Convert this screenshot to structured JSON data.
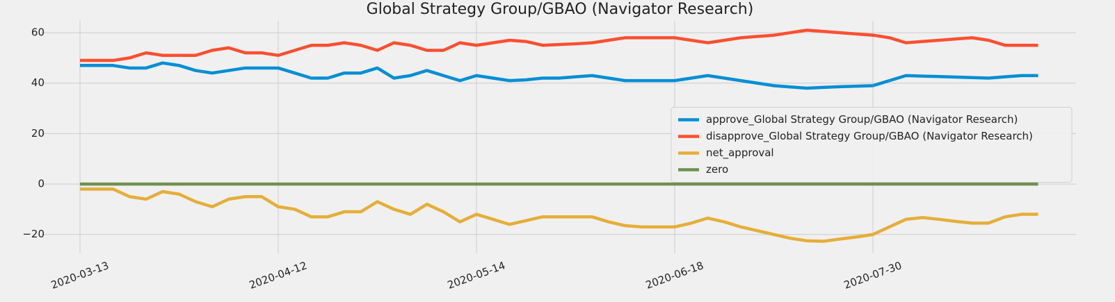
{
  "chart_data": {
    "type": "line",
    "title": "Global Strategy Group/GBAO (Navigator Research)",
    "categories": [
      "2020-03-13",
      null,
      null,
      null,
      null,
      null,
      null,
      null,
      null,
      null,
      null,
      null,
      "2020-04-12",
      null,
      null,
      null,
      null,
      null,
      null,
      null,
      null,
      null,
      null,
      null,
      "2020-05-14",
      null,
      null,
      null,
      null,
      null,
      null,
      null,
      null,
      null,
      null,
      null,
      "2020-06-18",
      null,
      null,
      null,
      null,
      null,
      null,
      null,
      null,
      null,
      null,
      null,
      "2020-07-30",
      null,
      null,
      null,
      null,
      null,
      null,
      null,
      null,
      null,
      null
    ],
    "series": [
      {
        "name": "approve_Global Strategy Group/GBAO (Navigator Research)",
        "color": "#008fd5",
        "values": [
          47,
          47,
          47,
          46,
          46,
          48,
          47,
          45,
          44,
          45,
          46,
          46,
          46,
          44,
          42,
          42,
          44,
          44,
          46,
          42,
          43,
          45,
          43,
          41,
          43,
          42,
          41,
          41.3,
          42,
          42,
          42.5,
          43,
          42,
          41,
          41,
          41,
          41,
          42,
          43,
          42,
          41,
          40,
          39,
          38.5,
          38,
          38.3,
          38.6,
          38.8,
          39,
          41,
          43,
          42.8,
          42.6,
          42.4,
          42.2,
          42,
          42.5,
          43,
          43
        ]
      },
      {
        "name": "disapprove_Global Strategy Group/GBAO (Navigator Research)",
        "color": "#fc4f30",
        "values": [
          49,
          49,
          49,
          50,
          52,
          51,
          51,
          51,
          53,
          54,
          52,
          52,
          51,
          53,
          55,
          55,
          56,
          55,
          53,
          56,
          55,
          53,
          53,
          56,
          55,
          56,
          57,
          56.5,
          55,
          55.3,
          55.6,
          56,
          57,
          58,
          58,
          58,
          58,
          57,
          56,
          57,
          58,
          58.5,
          59,
          60,
          61,
          60.5,
          60,
          59.5,
          59,
          58,
          56,
          56.5,
          57,
          57.5,
          58,
          57,
          55,
          55,
          55
        ]
      },
      {
        "name": "net_approval",
        "color": "#e5ae38",
        "values": [
          -2,
          -2,
          -2,
          -5,
          -6,
          -3,
          -4,
          -7,
          -9,
          -6,
          -5,
          -5,
          -9,
          -10,
          -13,
          -13,
          -11,
          -11,
          -7,
          -10,
          -12,
          -8,
          -11,
          -15,
          -12,
          -14,
          -16,
          -14.5,
          -13,
          -13,
          -13,
          -13,
          -15,
          -16.5,
          -17,
          -17,
          -17,
          -15.5,
          -13.5,
          -15,
          -17,
          -18.5,
          -20,
          -21.5,
          -22.5,
          -22.7,
          -21.8,
          -21,
          -20,
          -17,
          -14,
          -13.3,
          -14,
          -14.8,
          -15.5,
          -15.5,
          -13,
          -12,
          -12
        ]
      },
      {
        "name": "zero",
        "color": "#6d904f",
        "values": [
          0,
          0,
          0,
          0,
          0,
          0,
          0,
          0,
          0,
          0,
          0,
          0,
          0,
          0,
          0,
          0,
          0,
          0,
          0,
          0,
          0,
          0,
          0,
          0,
          0,
          0,
          0,
          0,
          0,
          0,
          0,
          0,
          0,
          0,
          0,
          0,
          0,
          0,
          0,
          0,
          0,
          0,
          0,
          0,
          0,
          0,
          0,
          0,
          0,
          0,
          0,
          0,
          0,
          0,
          0,
          0,
          0,
          0,
          0
        ]
      }
    ],
    "ylim": [
      -27.5,
      64.7
    ],
    "yticks": [
      {
        "value": -20,
        "label": "−20"
      },
      0,
      20,
      40,
      60
    ],
    "grid": true,
    "legend": "center right"
  }
}
